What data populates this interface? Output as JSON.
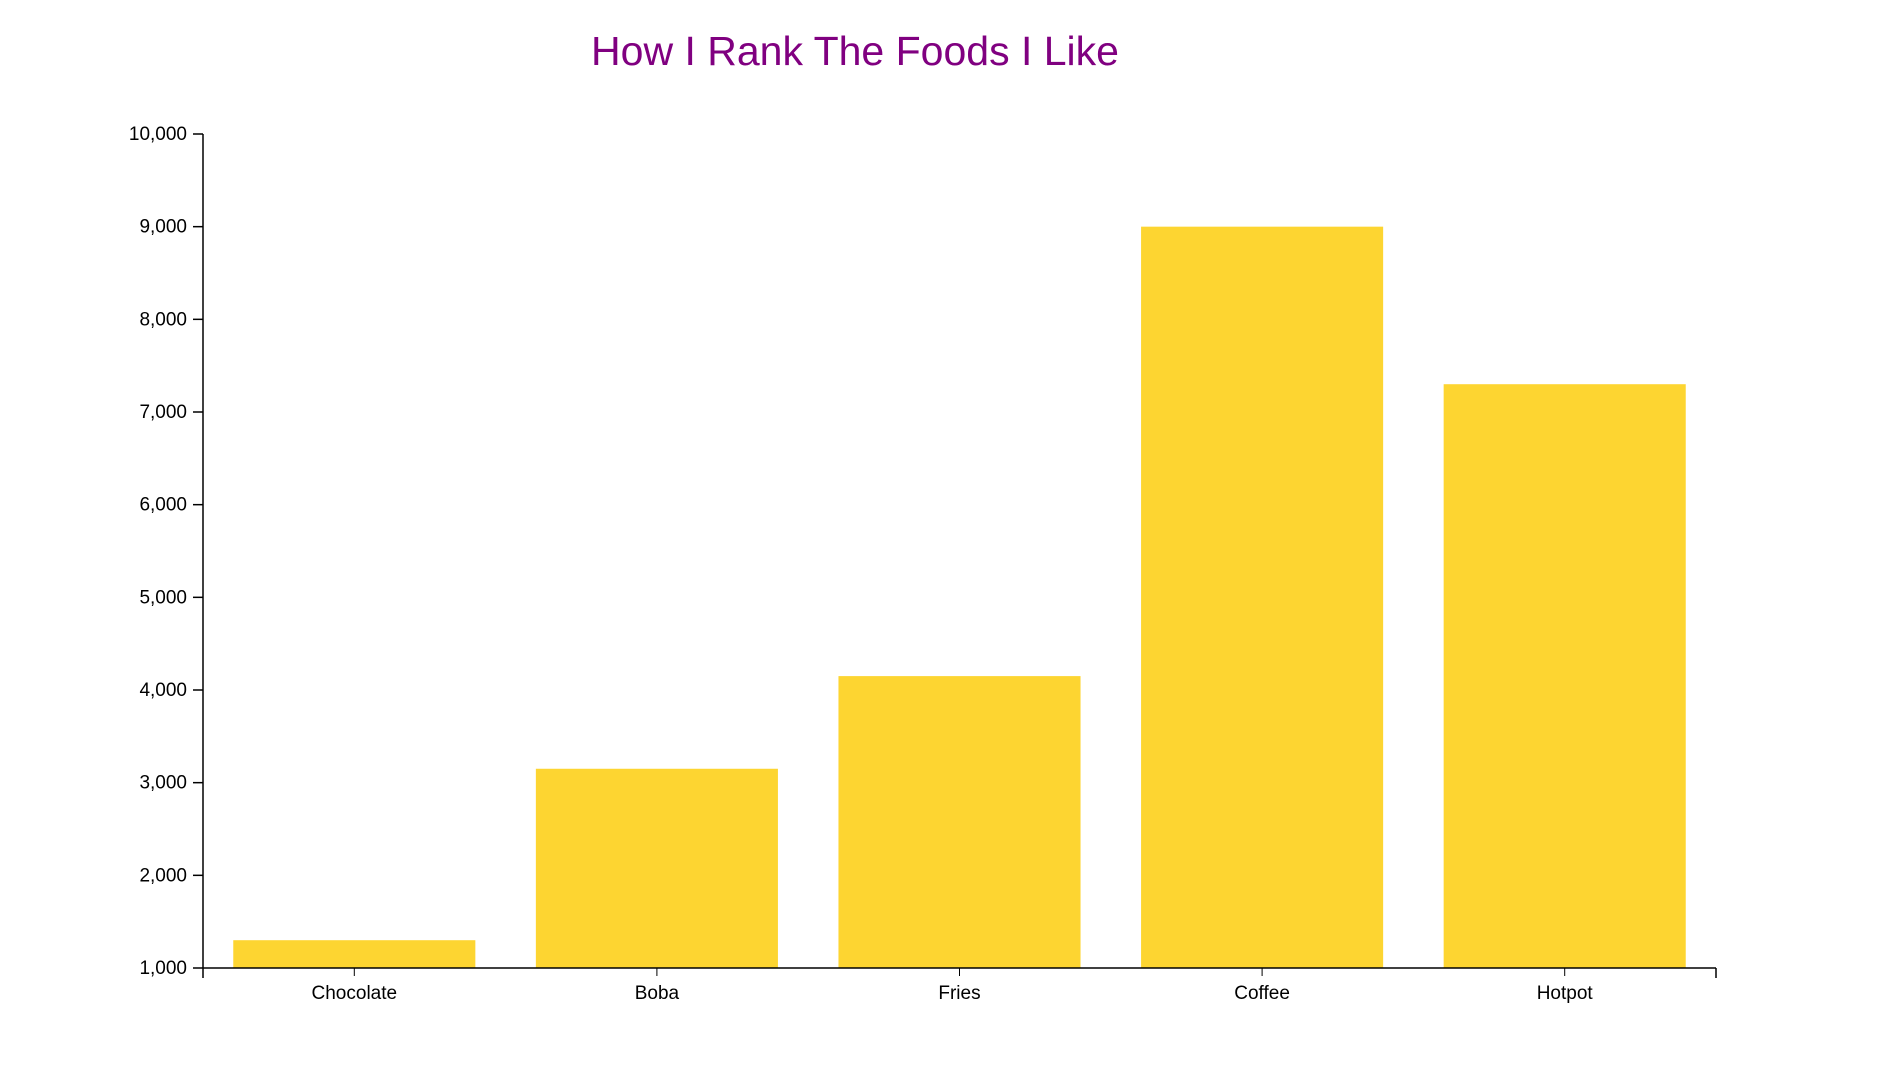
{
  "chart_data": {
    "type": "bar",
    "title": "How I Rank The Foods I Like",
    "categories": [
      "Chocolate",
      "Boba",
      "Fries",
      "Coffee",
      "Hotpot"
    ],
    "values": [
      1300,
      3150,
      4150,
      9000,
      7300
    ],
    "xlabel": "",
    "ylabel": "",
    "ylim": [
      1000,
      10000
    ],
    "yticks": [
      "1,000",
      "2,000",
      "3,000",
      "4,000",
      "5,000",
      "6,000",
      "7,000",
      "8,000",
      "9,000",
      "10,000"
    ],
    "grid": false,
    "legend": "none",
    "bar_color": "#fdd531",
    "title_color": "#800080",
    "axis_color": "#000000"
  }
}
